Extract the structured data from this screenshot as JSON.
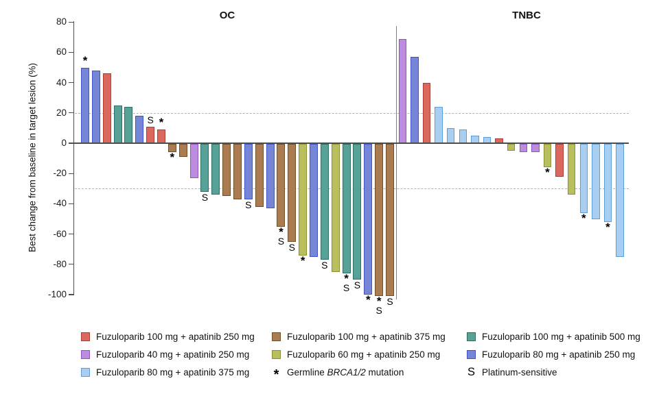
{
  "chart_data": {
    "type": "bar",
    "variant": "waterfall",
    "title": "",
    "ylabel": "Best change from baseline in target lesion (%)",
    "xlabel": "",
    "ylim": [
      -100,
      80
    ],
    "yticks": [
      80,
      60,
      40,
      20,
      0,
      -20,
      -40,
      -60,
      -80,
      -100
    ],
    "reference_lines": [
      20,
      -30
    ],
    "grid": "dashed-reference-lines-only",
    "legend_position": "bottom",
    "groups": {
      "f100a250": {
        "label": "Fuzuloparib 100 mg + apatinib 250 mg",
        "fill": "#DC675C",
        "border": "#AC3D32"
      },
      "f40a250": {
        "label": "Fuzuloparib 40 mg + apatinib 250 mg",
        "fill": "#BC8CDF",
        "border": "#9153C0"
      },
      "f80a375": {
        "label": "Fuzuloparib 80 mg + apatinib 375 mg",
        "fill": "#A8CEF2",
        "border": "#5B9FD8"
      },
      "f100a375": {
        "label": "Fuzuloparib 100 mg + apatinib 375 mg",
        "fill": "#AA7C50",
        "border": "#6F4D28"
      },
      "f60a250": {
        "label": "Fuzuloparib 60 mg + apatinib 250 mg",
        "fill": "#B9BF5E",
        "border": "#899030"
      },
      "f80a250": {
        "label": "Fuzuloparib 80 mg + apatinib 250 mg",
        "fill": "#7585D8",
        "border": "#4153C2"
      },
      "f100a500": {
        "label": "Fuzuloparib 100 mg + apatinib 500 mg",
        "fill": "#57A296",
        "border": "#2C6E62"
      }
    },
    "symbol_legend": {
      "*": {
        "label_pre": "Germline ",
        "label_italic": "BRCA1/2",
        "label_post": " mutation"
      },
      "S": {
        "label_pre": "Platinum-sensitive",
        "label_italic": "",
        "label_post": ""
      }
    },
    "legend_columns": [
      [
        "f100a250",
        "f40a250",
        "f80a375"
      ],
      [
        "f100a375",
        "f60a250",
        "sym:*"
      ],
      [
        "f100a500",
        "f80a250",
        "sym:S"
      ]
    ],
    "panels": [
      {
        "title": "OC",
        "bars": [
          {
            "value": 50,
            "group": "f80a250",
            "markers": [
              "*"
            ]
          },
          {
            "value": 48,
            "group": "f80a250",
            "markers": []
          },
          {
            "value": 46,
            "group": "f100a250",
            "markers": []
          },
          {
            "value": 25,
            "group": "f100a500",
            "markers": []
          },
          {
            "value": 24,
            "group": "f100a500",
            "markers": []
          },
          {
            "value": 18,
            "group": "f80a250",
            "markers": []
          },
          {
            "value": 11,
            "group": "f100a250",
            "markers": [
              "S"
            ]
          },
          {
            "value": 9,
            "group": "f100a250",
            "markers": [
              "*"
            ]
          },
          {
            "value": -6,
            "group": "f100a375",
            "markers": [
              "*"
            ]
          },
          {
            "value": -9,
            "group": "f100a375",
            "markers": []
          },
          {
            "value": -23,
            "group": "f40a250",
            "markers": []
          },
          {
            "value": -32,
            "group": "f100a500",
            "markers": [
              "S"
            ]
          },
          {
            "value": -34,
            "group": "f100a500",
            "markers": []
          },
          {
            "value": -35,
            "group": "f100a375",
            "markers": []
          },
          {
            "value": -37,
            "group": "f100a375",
            "markers": []
          },
          {
            "value": -37,
            "group": "f80a250",
            "markers": [
              "S"
            ]
          },
          {
            "value": -42,
            "group": "f100a375",
            "markers": []
          },
          {
            "value": -43,
            "group": "f80a250",
            "markers": []
          },
          {
            "value": -55,
            "group": "f100a375",
            "markers": [
              "*",
              "S"
            ]
          },
          {
            "value": -65,
            "group": "f100a375",
            "markers": [
              "S"
            ]
          },
          {
            "value": -74,
            "group": "f60a250",
            "markers": [
              "*"
            ]
          },
          {
            "value": -75,
            "group": "f80a250",
            "markers": []
          },
          {
            "value": -77,
            "group": "f100a500",
            "markers": [
              "S"
            ]
          },
          {
            "value": -85,
            "group": "f60a250",
            "markers": []
          },
          {
            "value": -86,
            "group": "f100a500",
            "markers": [
              "*",
              "S"
            ]
          },
          {
            "value": -90,
            "group": "f100a500",
            "markers": [
              "S"
            ]
          },
          {
            "value": -100,
            "group": "f80a250",
            "markers": [
              "*"
            ]
          },
          {
            "value": -101,
            "group": "f100a375",
            "markers": [
              "*",
              "S"
            ]
          },
          {
            "value": -101,
            "group": "f100a375",
            "markers": [
              "S"
            ]
          }
        ]
      },
      {
        "title": "TNBC",
        "bars": [
          {
            "value": 69,
            "group": "f40a250",
            "markers": []
          },
          {
            "value": 57,
            "group": "f80a250",
            "markers": []
          },
          {
            "value": 40,
            "group": "f100a250",
            "markers": []
          },
          {
            "value": 24,
            "group": "f80a375",
            "markers": []
          },
          {
            "value": 10,
            "group": "f80a375",
            "markers": []
          },
          {
            "value": 9,
            "group": "f80a375",
            "markers": []
          },
          {
            "value": 5,
            "group": "f80a375",
            "markers": []
          },
          {
            "value": 4,
            "group": "f80a375",
            "markers": []
          },
          {
            "value": 3,
            "group": "f100a250",
            "markers": []
          },
          {
            "value": -5,
            "group": "f60a250",
            "markers": []
          },
          {
            "value": -6,
            "group": "f40a250",
            "markers": []
          },
          {
            "value": -6,
            "group": "f40a250",
            "markers": []
          },
          {
            "value": -16,
            "group": "f60a250",
            "markers": [
              "*"
            ]
          },
          {
            "value": -22,
            "group": "f100a250",
            "markers": []
          },
          {
            "value": -34,
            "group": "f60a250",
            "markers": []
          },
          {
            "value": -46,
            "group": "f80a375",
            "markers": [
              "*"
            ]
          },
          {
            "value": -50,
            "group": "f80a375",
            "markers": []
          },
          {
            "value": -52,
            "group": "f80a375",
            "markers": [
              "*"
            ]
          },
          {
            "value": -75,
            "group": "f80a375",
            "markers": []
          }
        ]
      }
    ]
  }
}
